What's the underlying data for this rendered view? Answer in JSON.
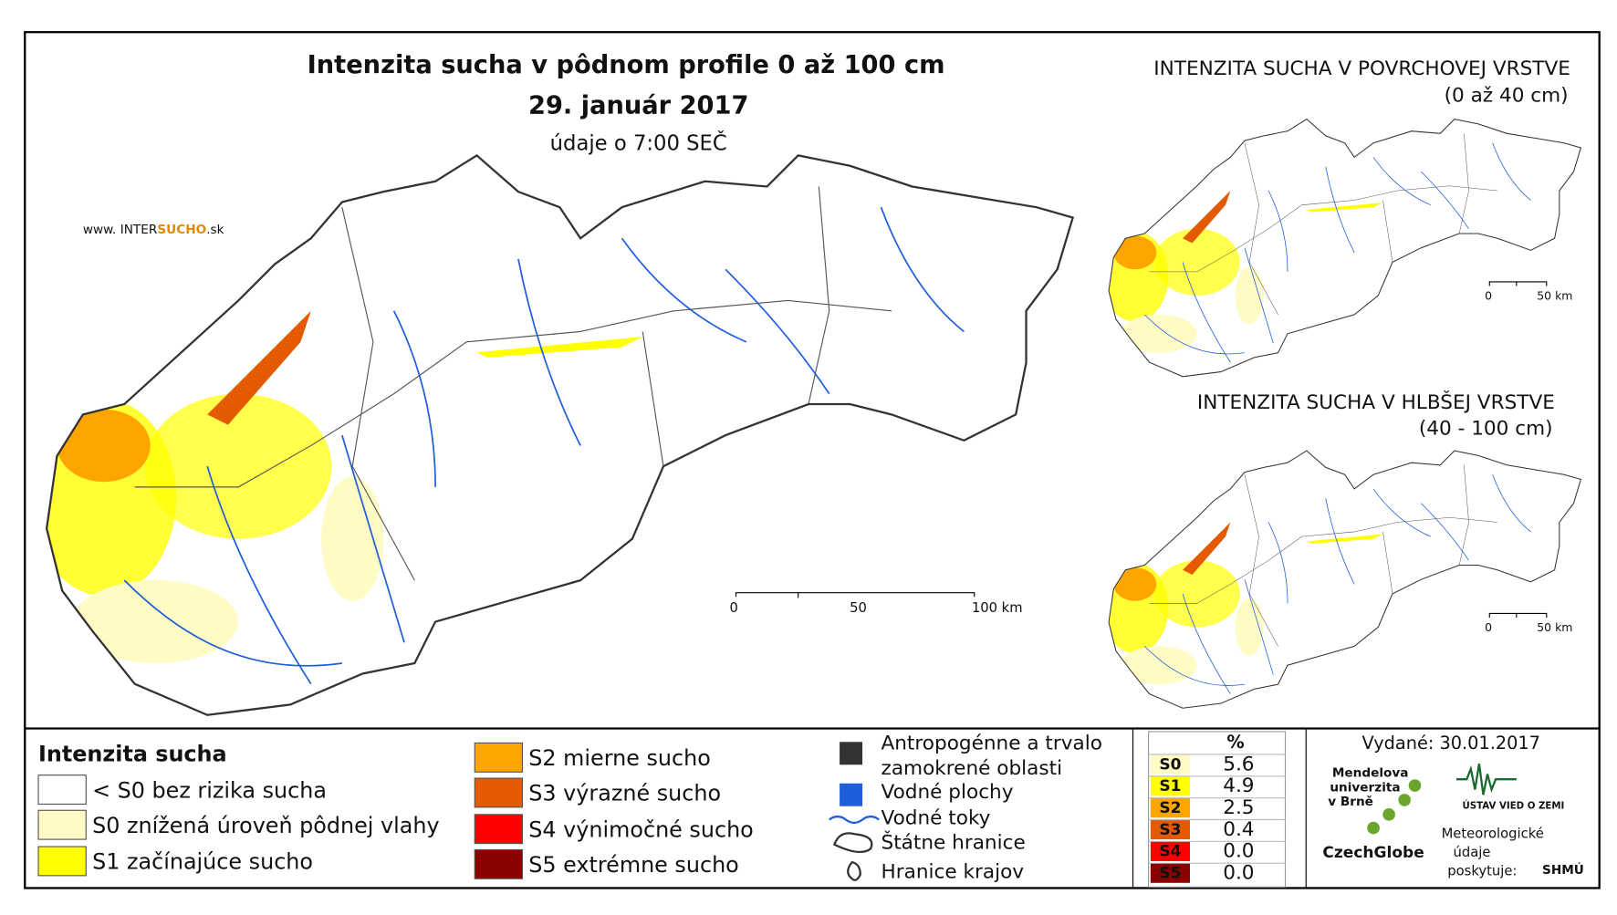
{
  "title": "Intenzita sucha v pôdnom profile 0 až 100 cm",
  "date": "29. január 2017",
  "time_note": "údaje o 7:00 SEČ",
  "website": [
    "www. INTER",
    "SUCHO",
    ".sk"
  ],
  "main_scale": [
    "0",
    "50",
    "100 km"
  ],
  "insets": [
    {
      "title": "INTENZITA SUCHA V POVRCHOVEJ VRSTVE",
      "subtitle": "(0 až 40 cm)",
      "scale": [
        "0",
        "50 km"
      ]
    },
    {
      "title": "INTENZITA SUCHA V HLBŠEJ VRSTVE",
      "subtitle": "(40 - 100 cm)",
      "scale": [
        "0",
        "50 km"
      ]
    }
  ],
  "legend": {
    "title": "Intenzita sucha",
    "classes": [
      {
        "label": "< S0 bez rizika sucha",
        "color": "#ffffff"
      },
      {
        "label": "S0 znížená úroveň pôdnej vlahy",
        "color": "#fffbc4"
      },
      {
        "label": "S1 začínajúce sucho",
        "color": "#ffff00"
      },
      {
        "label": "S2 mierne sucho",
        "color": "#ffa500"
      },
      {
        "label": "S3 výrazné sucho",
        "color": "#e35a00"
      },
      {
        "label": "S4 výnimočné sucho",
        "color": "#ff0000"
      },
      {
        "label": "S5 extrémne sucho",
        "color": "#8b0000"
      }
    ],
    "layers": [
      [
        "Antropogénne a trvalo",
        "zamokrené oblasti"
      ],
      [
        "Vodné plochy"
      ],
      [
        "Vodné toky"
      ],
      [
        "Štátne hranice"
      ],
      [
        "Hranice krajov"
      ]
    ]
  },
  "stats": {
    "header": "%",
    "rows": [
      {
        "class": "S0",
        "value": "5.6",
        "color": "#fffbc4"
      },
      {
        "class": "S1",
        "value": "4.9",
        "color": "#ffff00"
      },
      {
        "class": "S2",
        "value": "2.5",
        "color": "#ffa500"
      },
      {
        "class": "S3",
        "value": "0.4",
        "color": "#e35a00"
      },
      {
        "class": "S4",
        "value": "0.0",
        "color": "#ff0000"
      },
      {
        "class": "S5",
        "value": "0.0",
        "color": "#8b0000"
      }
    ]
  },
  "issued": "Vydané: 30.01.2017",
  "logos": {
    "mendel": [
      "Mendelova",
      "univerzita",
      "v Brně"
    ],
    "czechglobe": "CzechGlobe",
    "uvz": "ÚSTAV VIED O ZEMI",
    "meteo": [
      "Meteorologické",
      "údaje",
      "poskytuje:"
    ],
    "shmu": "SHMÚ"
  }
}
